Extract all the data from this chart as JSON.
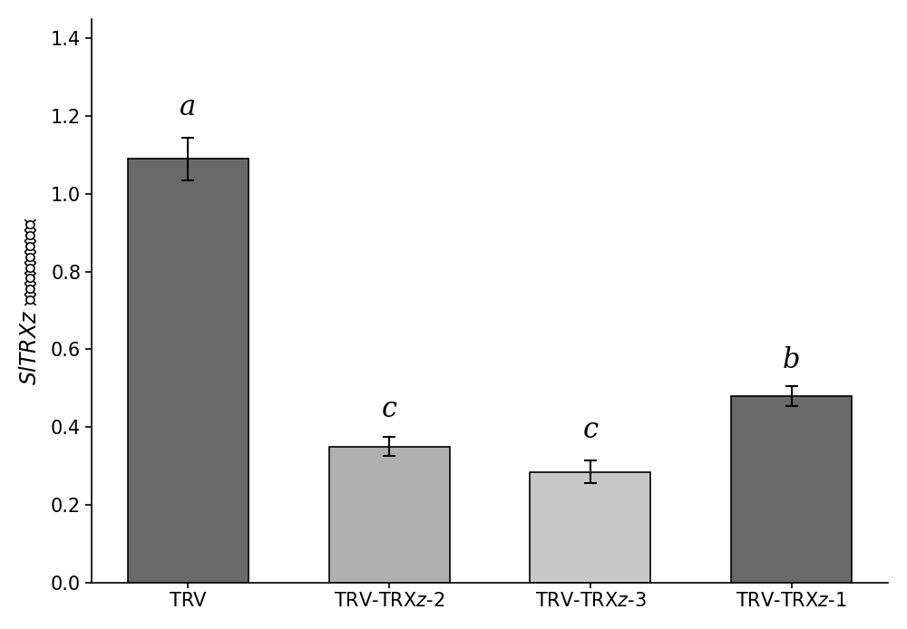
{
  "categories": [
    "TRV",
    "TRV-TRX$z$-2",
    "TRV-TRX$z$-3",
    "TRV-TRX$z$-1"
  ],
  "categories_plain": [
    "TRV",
    "TRV-TRXz-2",
    "TRV-TRXz-3",
    "TRV-TRXz-1"
  ],
  "values": [
    1.09,
    0.35,
    0.285,
    0.48
  ],
  "errors": [
    0.055,
    0.025,
    0.03,
    0.025
  ],
  "bar_colors": [
    "#696969",
    "#b0b0b0",
    "#c8c8c8",
    "#696969"
  ],
  "sig_labels": [
    "a",
    "c",
    "c",
    "b"
  ],
  "ylim": [
    0.0,
    1.45
  ],
  "yticks": [
    0.0,
    0.2,
    0.4,
    0.6,
    0.8,
    1.0,
    1.2,
    1.4
  ],
  "bar_width": 0.6,
  "background_color": "#ffffff",
  "edge_color": "#000000",
  "error_color": "#000000",
  "sig_fontsize": 22,
  "ylabel_fontsize": 17,
  "tick_fontsize": 15,
  "xlabel_fontsize": 15
}
